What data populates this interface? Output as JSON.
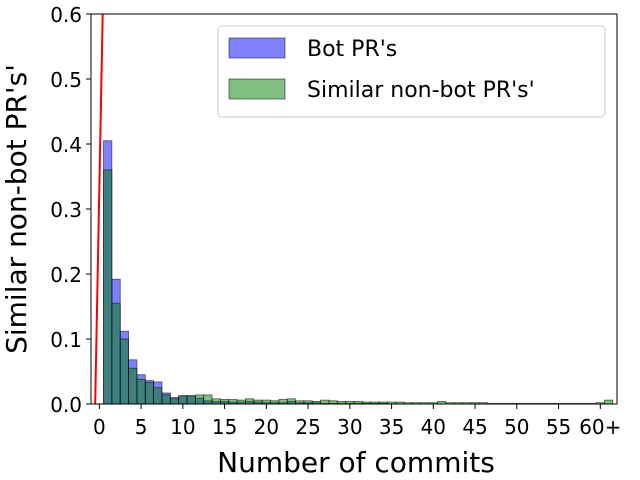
{
  "chart_data": {
    "type": "bar",
    "title": "",
    "xlabel": "Number of commits",
    "ylabel": "Similar non-bot PR's'",
    "xlim": [
      -1,
      62
    ],
    "ylim": [
      0,
      0.6
    ],
    "x_ticks": [
      {
        "value": 0,
        "label": "0"
      },
      {
        "value": 5,
        "label": "5"
      },
      {
        "value": 10,
        "label": "10"
      },
      {
        "value": 15,
        "label": "15"
      },
      {
        "value": 20,
        "label": "20"
      },
      {
        "value": 25,
        "label": "25"
      },
      {
        "value": 30,
        "label": "30"
      },
      {
        "value": 35,
        "label": "35"
      },
      {
        "value": 40,
        "label": "40"
      },
      {
        "value": 45,
        "label": "45"
      },
      {
        "value": 50,
        "label": "50"
      },
      {
        "value": 55,
        "label": "55"
      },
      {
        "value": 60,
        "label": "60+"
      }
    ],
    "y_ticks": [
      {
        "value": 0.0,
        "label": "0.0"
      },
      {
        "value": 0.1,
        "label": "0.1"
      },
      {
        "value": 0.2,
        "label": "0.2"
      },
      {
        "value": 0.3,
        "label": "0.3"
      },
      {
        "value": 0.4,
        "label": "0.4"
      },
      {
        "value": 0.5,
        "label": "0.5"
      },
      {
        "value": 0.6,
        "label": "0.6"
      }
    ],
    "grid": false,
    "legend_position": "top-right",
    "bin_width": 1,
    "x": [
      1,
      2,
      3,
      4,
      5,
      6,
      7,
      8,
      9,
      10,
      11,
      12,
      13,
      14,
      15,
      16,
      17,
      18,
      19,
      20,
      21,
      22,
      23,
      24,
      25,
      26,
      27,
      28,
      29,
      30,
      31,
      32,
      33,
      34,
      35,
      36,
      37,
      38,
      39,
      40,
      41,
      42,
      43,
      44,
      45,
      46,
      47,
      48,
      49,
      50,
      51,
      52,
      53,
      54,
      55,
      56,
      57,
      58,
      59,
      60,
      61
    ],
    "series": [
      {
        "name": "Bot PR's",
        "color": "#0000ff",
        "opacity": 0.5,
        "values": [
          0.405,
          0.192,
          0.112,
          0.068,
          0.045,
          0.036,
          0.034,
          0.017,
          0.01,
          0.012,
          0.012,
          0.009,
          0.005,
          0.004,
          0.004,
          0.003,
          0.003,
          0.004,
          0.003,
          0.002,
          0.002,
          0.002,
          0.004,
          0.002,
          0.002,
          0.002,
          0.001,
          0.001,
          0.001,
          0.001,
          0.001,
          0.001,
          0.001,
          0.001,
          0,
          0,
          0,
          0,
          0,
          0,
          0,
          0,
          0,
          0,
          0,
          0,
          0,
          0,
          0,
          0,
          0,
          0,
          0,
          0,
          0,
          0,
          0,
          0,
          0,
          0,
          0
        ]
      },
      {
        "name": "Similar non-bot PR's'",
        "color": "#008000",
        "opacity": 0.5,
        "values": [
          0.36,
          0.155,
          0.1,
          0.055,
          0.038,
          0.033,
          0.025,
          0.014,
          0.008,
          0.013,
          0.013,
          0.014,
          0.014,
          0.008,
          0.007,
          0.007,
          0.006,
          0.008,
          0.006,
          0.006,
          0.005,
          0.007,
          0.008,
          0.005,
          0.005,
          0.004,
          0.006,
          0.005,
          0.004,
          0.004,
          0.004,
          0.003,
          0.003,
          0.003,
          0.003,
          0.003,
          0.002,
          0.002,
          0.002,
          0.002,
          0.004,
          0.002,
          0.002,
          0.002,
          0.002,
          0.002,
          0.001,
          0.001,
          0.001,
          0.001,
          0.001,
          0.001,
          0.001,
          0.001,
          0.001,
          0.001,
          0.001,
          0.001,
          0.001,
          0.002,
          0.006
        ]
      }
    ],
    "reference_line": {
      "color": "#ff0000",
      "x": [
        -0.5,
        0.4
      ],
      "y": [
        0,
        0.6
      ]
    }
  }
}
